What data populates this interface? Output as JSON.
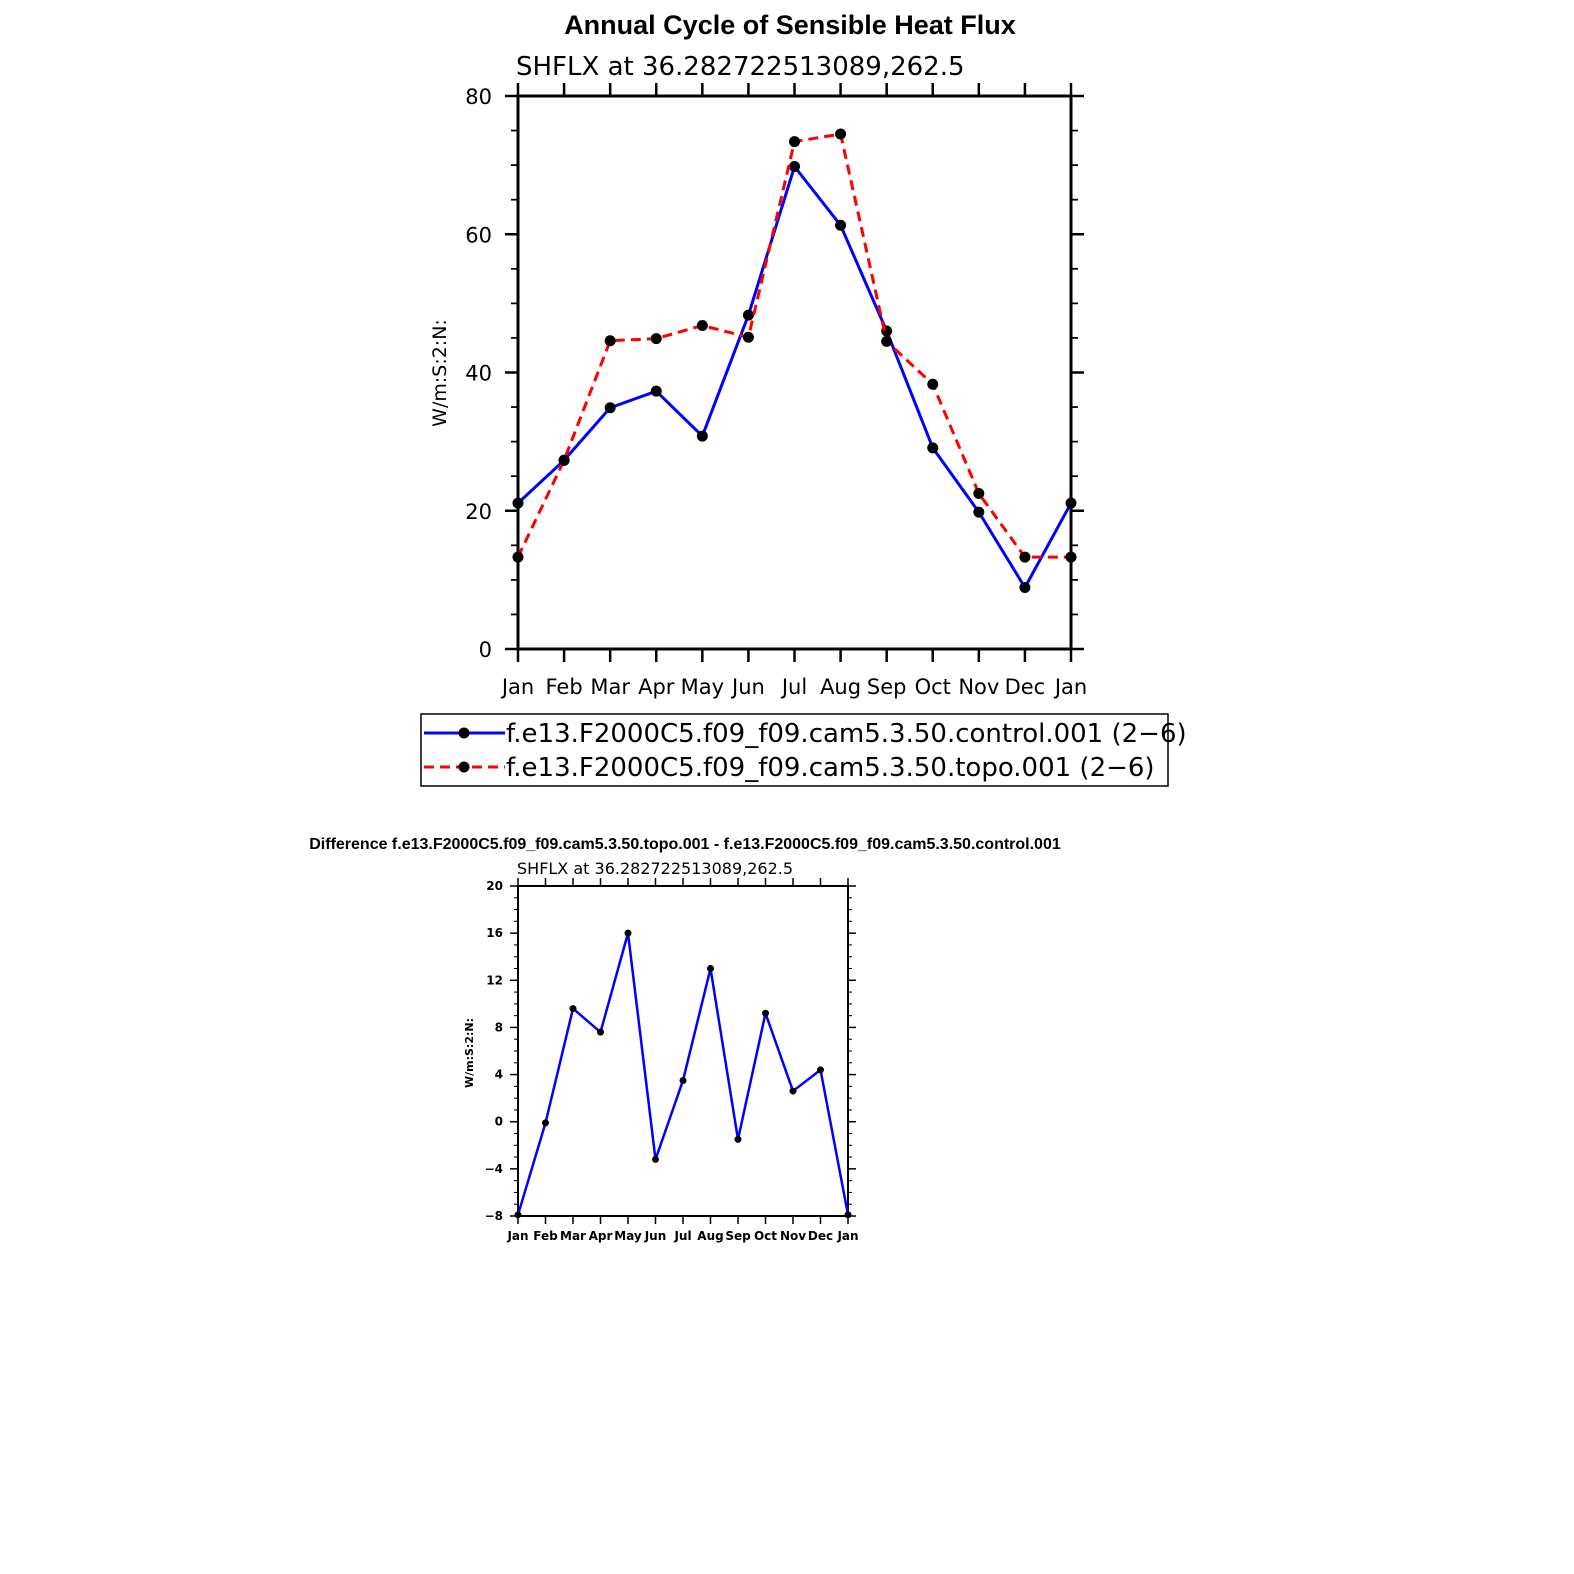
{
  "chart_data": [
    {
      "type": "line",
      "title": "Annual Cycle of Sensible Heat Flux",
      "subtitle": "SHFLX  at  36.282722513089,262.5",
      "ylabel": "W/m:S:2:N:",
      "xlabel": "",
      "categories": [
        "Jan",
        "Feb",
        "Mar",
        "Apr",
        "May",
        "Jun",
        "Jul",
        "Aug",
        "Sep",
        "Oct",
        "Nov",
        "Dec",
        "Jan"
      ],
      "ylim": [
        0,
        80
      ],
      "yticks": [
        0,
        20,
        40,
        60,
        80
      ],
      "series": [
        {
          "name": "f.e13.F2000C5.f09_f09.cam5.3.50.control.001 (2−6)",
          "color": "#0000ff",
          "style": "solid",
          "values": [
            21.1,
            27.3,
            34.9,
            37.3,
            30.8,
            48.3,
            69.8,
            61.3,
            46.0,
            29.1,
            19.8,
            8.9,
            21.1
          ]
        },
        {
          "name": "f.e13.F2000C5.f09_f09.cam5.3.50.topo.001 (2−6)",
          "color": "#ff0000",
          "style": "dashed",
          "values": [
            13.3,
            27.3,
            44.6,
            44.9,
            46.8,
            45.1,
            73.4,
            74.5,
            44.5,
            38.3,
            22.5,
            13.3,
            13.3
          ]
        }
      ],
      "legend": "bottom",
      "grid": false
    },
    {
      "type": "line",
      "title": "Difference f.e13.F2000C5.f09_f09.cam5.3.50.topo.001 - f.e13.F2000C5.f09_f09.cam5.3.50.control.001",
      "subtitle": "SHFLX  at  36.282722513089,262.5",
      "ylabel": "W/m:S:2:N:",
      "xlabel": "",
      "categories": [
        "Jan",
        "Feb",
        "Mar",
        "Apr",
        "May",
        "Jun",
        "Jul",
        "Aug",
        "Sep",
        "Oct",
        "Nov",
        "Dec",
        "Jan"
      ],
      "ylim": [
        -8,
        20
      ],
      "yticks": [
        -8,
        -4,
        0,
        4,
        8,
        12,
        16,
        20
      ],
      "series": [
        {
          "name": "difference",
          "color": "#0000ff",
          "style": "solid",
          "values": [
            -7.9,
            -0.1,
            9.6,
            7.6,
            16.0,
            -3.2,
            3.5,
            13.0,
            -1.5,
            9.2,
            2.6,
            4.4,
            -7.9
          ]
        }
      ],
      "legend": "none",
      "grid": false
    }
  ]
}
